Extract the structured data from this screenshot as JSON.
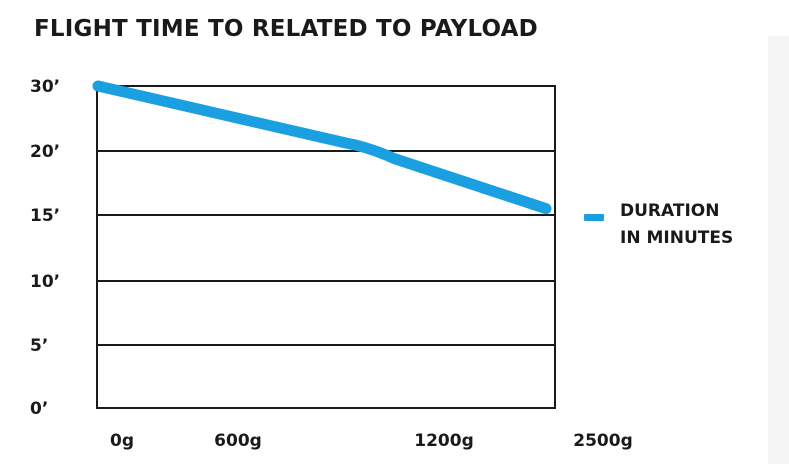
{
  "title": "FLIGHT TIME TO RELATED TO PAYLOAD",
  "legend": {
    "line1": "DURATION",
    "line2": "IN MINUTES"
  },
  "colors": {
    "series": "#1a9fe0",
    "grid": "#1a1a1a",
    "text": "#1a1a1a"
  },
  "chart_data": {
    "type": "line",
    "title": "FLIGHT TIME TO RELATED TO PAYLOAD",
    "xlabel": "",
    "ylabel": "",
    "x_ticks": [
      "0g",
      "600g",
      "1200g",
      "2500g"
    ],
    "y_ticks": [
      "0’",
      "5’",
      "10’",
      "15’",
      "20’",
      "30’"
    ],
    "grid": true,
    "legend_position": "right",
    "series": [
      {
        "name": "DURATION IN MINUTES",
        "points": [
          {
            "x": "0g",
            "y": 30
          },
          {
            "x": "1200g",
            "y": 21
          },
          {
            "x": "2500g",
            "y": 15.5
          }
        ]
      }
    ]
  }
}
